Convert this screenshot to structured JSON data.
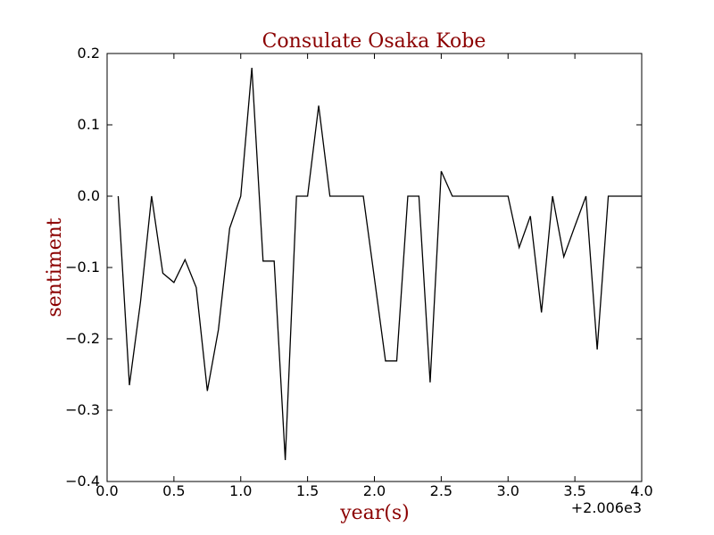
{
  "chart_data": {
    "type": "line",
    "title": "Consulate Osaka Kobe",
    "xlabel": "year(s)",
    "ylabel": "sentiment",
    "x_offset_label": "+2.006e3",
    "xlim": [
      0.0,
      4.0
    ],
    "ylim": [
      -0.4,
      0.2
    ],
    "xticks": [
      "0.0",
      "0.5",
      "1.0",
      "1.5",
      "2.0",
      "2.5",
      "3.0",
      "3.5",
      "4.0"
    ],
    "yticks": [
      "0.2",
      "0.1",
      "0.0",
      "−0.1",
      "−0.2",
      "−0.3",
      "−0.4"
    ],
    "grid": false,
    "colors": {
      "title": "#8b0000",
      "axis_labels": "#8b0000",
      "line": "#000000"
    },
    "series": [
      {
        "x": [
          0.083,
          0.167,
          0.25,
          0.333,
          0.417,
          0.5,
          0.583,
          0.667,
          0.75,
          0.833,
          0.917,
          1.0,
          1.083,
          1.167,
          1.25,
          1.333,
          1.417,
          1.5,
          1.583,
          1.667,
          1.75,
          1.833,
          1.917,
          2.0,
          2.083,
          2.167,
          2.25,
          2.333,
          2.417,
          2.5,
          2.583,
          2.667,
          2.75,
          2.833,
          2.917,
          3.0,
          3.083,
          3.167,
          3.25,
          3.333,
          3.417,
          3.5,
          3.583,
          3.667,
          3.75,
          3.833,
          3.917,
          4.0
        ],
        "values": [
          0.0,
          -0.265,
          -0.148,
          0.0,
          -0.108,
          -0.121,
          -0.089,
          -0.128,
          -0.273,
          -0.187,
          -0.045,
          0.0,
          0.18,
          -0.091,
          -0.091,
          -0.37,
          0.0,
          0.0,
          0.127,
          0.0,
          0.0,
          0.0,
          0.0,
          -0.115,
          -0.231,
          -0.231,
          0.0,
          0.0,
          -0.261,
          0.035,
          0.0,
          0.0,
          0.0,
          0.0,
          0.0,
          0.0,
          -0.072,
          -0.028,
          -0.163,
          0.0,
          -0.085,
          -0.042,
          0.0,
          -0.215,
          0.0,
          0.0,
          0.0,
          0.0
        ]
      }
    ]
  }
}
